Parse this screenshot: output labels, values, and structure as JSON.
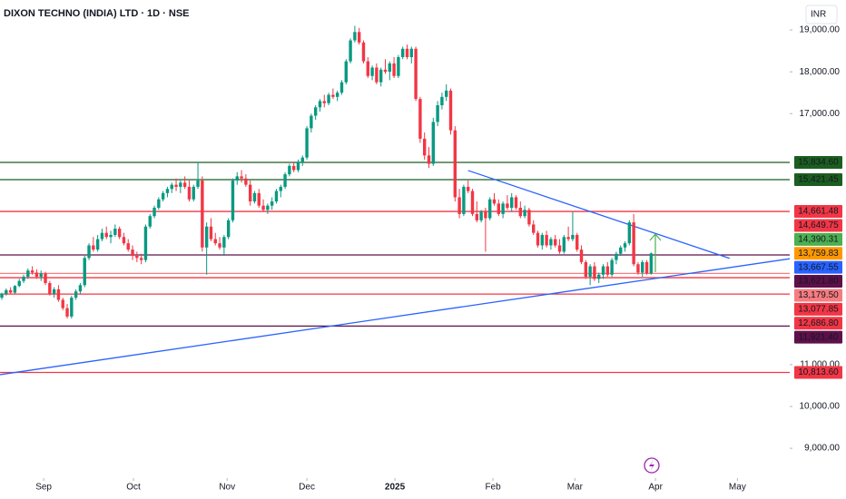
{
  "chart_data": {
    "type": "candlestick",
    "title": "DIXON TECHNO (INDIA) LTD · 1D · NSE",
    "currency": "INR",
    "up_color": "#089981",
    "down_color": "#f23645",
    "xlim": [
      -0.42,
      180.8
    ],
    "ylim": [
      8330,
      19716
    ],
    "xticks": [
      {
        "value": 9.6,
        "label": "Sep"
      },
      {
        "value": 30.2,
        "label": "Oct"
      },
      {
        "value": 51.7,
        "label": "Nov"
      },
      {
        "value": 70,
        "label": "Dec"
      },
      {
        "value": 90.2,
        "label": "2025",
        "bold": true
      },
      {
        "value": 112.7,
        "label": "Feb"
      },
      {
        "value": 131.5,
        "label": "Mar"
      },
      {
        "value": 150,
        "label": "Apr"
      },
      {
        "value": 168.8,
        "label": "May"
      }
    ],
    "yticks": [
      {
        "value": 19000,
        "label": "19,000.00"
      },
      {
        "value": 18000,
        "label": "18,000.00"
      },
      {
        "value": 17000,
        "label": "17,000.00"
      },
      {
        "value": 11000,
        "label": "11,000.00"
      },
      {
        "value": 10000,
        "label": "10,000.00"
      },
      {
        "value": 9000,
        "label": "9,000.00"
      }
    ],
    "x": [
      0,
      1,
      2,
      3,
      4,
      5,
      6,
      7,
      8,
      9,
      10,
      11,
      12,
      13,
      14,
      15,
      16,
      17,
      18,
      19,
      20,
      21,
      22,
      23,
      24,
      25,
      26,
      27,
      28,
      29,
      30,
      31,
      32,
      33,
      34,
      35,
      36,
      37,
      38,
      39,
      40,
      41,
      42,
      43,
      44,
      45,
      46,
      47,
      48,
      49,
      50,
      51,
      52,
      53,
      54,
      55,
      56,
      57,
      58,
      59,
      60,
      61,
      62,
      63,
      64,
      65,
      66,
      67,
      68,
      69,
      70,
      71,
      72,
      73,
      74,
      75,
      76,
      77,
      78,
      79,
      80,
      81,
      82,
      83,
      84,
      85,
      86,
      87,
      88,
      89,
      90,
      91,
      92,
      93,
      94,
      95,
      96,
      97,
      98,
      99,
      100,
      101,
      102,
      103,
      104,
      105,
      106,
      107,
      108,
      109,
      110,
      111,
      112,
      113,
      114,
      115,
      116,
      117,
      118,
      119,
      120,
      121,
      122,
      123,
      124,
      125,
      126,
      127,
      128,
      129,
      130,
      131,
      132,
      133,
      134,
      135,
      136,
      137,
      138,
      139,
      140,
      141,
      142,
      143,
      144,
      145,
      146,
      147,
      148,
      149
    ],
    "ohlc": [
      [
        12600,
        12720,
        12550,
        12700
      ],
      [
        12700,
        12820,
        12650,
        12780
      ],
      [
        12780,
        12850,
        12680,
        12720
      ],
      [
        12720,
        12900,
        12700,
        12880
      ],
      [
        12880,
        13050,
        12850,
        13000
      ],
      [
        13000,
        13150,
        12950,
        13100
      ],
      [
        13100,
        13300,
        13050,
        13250
      ],
      [
        13250,
        13350,
        13150,
        13200
      ],
      [
        13200,
        13280,
        13050,
        13100
      ],
      [
        13100,
        13250,
        13000,
        13180
      ],
      [
        13180,
        13220,
        12900,
        12950
      ],
      [
        12950,
        13000,
        12650,
        12700
      ],
      [
        12700,
        12850,
        12600,
        12800
      ],
      [
        12800,
        12900,
        12500,
        12550
      ],
      [
        12550,
        12600,
        12300,
        12350
      ],
      [
        12350,
        12450,
        12100,
        12150
      ],
      [
        12150,
        12650,
        12100,
        12600
      ],
      [
        12600,
        12800,
        12550,
        12750
      ],
      [
        12750,
        12950,
        12700,
        12900
      ],
      [
        12900,
        13600,
        12850,
        13550
      ],
      [
        13550,
        13900,
        13500,
        13850
      ],
      [
        13850,
        14050,
        13700,
        13750
      ],
      [
        13750,
        14100,
        13700,
        14000
      ],
      [
        14000,
        14250,
        13950,
        14150
      ],
      [
        14150,
        14300,
        14000,
        14050
      ],
      [
        14050,
        14200,
        13900,
        14100
      ],
      [
        14100,
        14350,
        14050,
        14250
      ],
      [
        14250,
        14300,
        14000,
        14050
      ],
      [
        14050,
        14150,
        13850,
        13900
      ],
      [
        13900,
        14000,
        13700,
        13750
      ],
      [
        13750,
        13850,
        13500,
        13600
      ],
      [
        13600,
        13700,
        13450,
        13550
      ],
      [
        13550,
        13650,
        13400,
        13500
      ],
      [
        13500,
        14350,
        13450,
        14300
      ],
      [
        14300,
        14600,
        14250,
        14550
      ],
      [
        14550,
        14800,
        14500,
        14750
      ],
      [
        14750,
        15000,
        14700,
        14950
      ],
      [
        14950,
        15150,
        14900,
        15100
      ],
      [
        15100,
        15250,
        15000,
        15200
      ],
      [
        15200,
        15350,
        15100,
        15300
      ],
      [
        15300,
        15450,
        15150,
        15250
      ],
      [
        15250,
        15400,
        15100,
        15350
      ],
      [
        15350,
        15500,
        15200,
        15250
      ],
      [
        15250,
        15400,
        14900,
        14950
      ],
      [
        14950,
        15300,
        14900,
        15250
      ],
      [
        15250,
        15830,
        15200,
        15400
      ],
      [
        15400,
        15500,
        13700,
        13800
      ],
      [
        13800,
        14400,
        13150,
        14300
      ],
      [
        14300,
        14500,
        13950,
        14000
      ],
      [
        14000,
        14150,
        13850,
        13900
      ],
      [
        13900,
        14050,
        13750,
        13800
      ],
      [
        13800,
        14100,
        13600,
        14050
      ],
      [
        14050,
        14500,
        14000,
        14450
      ],
      [
        14450,
        15450,
        14400,
        15400
      ],
      [
        15400,
        15600,
        15300,
        15500
      ],
      [
        15500,
        15650,
        15350,
        15450
      ],
      [
        15450,
        15550,
        15250,
        15300
      ],
      [
        15300,
        15400,
        14800,
        14900
      ],
      [
        14900,
        15150,
        14850,
        15100
      ],
      [
        15100,
        15200,
        14750,
        14800
      ],
      [
        14800,
        14950,
        14650,
        14700
      ],
      [
        14700,
        14850,
        14600,
        14800
      ],
      [
        14800,
        15000,
        14700,
        14900
      ],
      [
        14900,
        15200,
        14850,
        15150
      ],
      [
        15150,
        15300,
        15000,
        15250
      ],
      [
        15250,
        15600,
        15200,
        15550
      ],
      [
        15550,
        15800,
        15500,
        15750
      ],
      [
        15750,
        15850,
        15600,
        15650
      ],
      [
        15650,
        15900,
        15600,
        15850
      ],
      [
        15850,
        16000,
        15750,
        15950
      ],
      [
        15950,
        16700,
        15900,
        16650
      ],
      [
        16650,
        17000,
        16550,
        16950
      ],
      [
        16950,
        17200,
        16850,
        17150
      ],
      [
        17150,
        17350,
        17050,
        17300
      ],
      [
        17300,
        17450,
        17150,
        17250
      ],
      [
        17250,
        17500,
        17200,
        17450
      ],
      [
        17450,
        17600,
        17350,
        17400
      ],
      [
        17400,
        17550,
        17300,
        17500
      ],
      [
        17500,
        17800,
        17450,
        17750
      ],
      [
        17750,
        18300,
        17700,
        18250
      ],
      [
        18250,
        18800,
        18200,
        18750
      ],
      [
        18750,
        19100,
        18700,
        18950
      ],
      [
        18950,
        19050,
        18650,
        18700
      ],
      [
        18700,
        18750,
        18200,
        18250
      ],
      [
        18250,
        18350,
        17850,
        17900
      ],
      [
        17900,
        18150,
        17800,
        18100
      ],
      [
        18100,
        18200,
        17700,
        17750
      ],
      [
        17750,
        18100,
        17650,
        18050
      ],
      [
        18050,
        18300,
        17950,
        18000
      ],
      [
        18000,
        18250,
        17800,
        18200
      ],
      [
        18200,
        18350,
        17850,
        17900
      ],
      [
        17900,
        18400,
        17850,
        18350
      ],
      [
        18350,
        18600,
        18300,
        18550
      ],
      [
        18550,
        18650,
        18300,
        18350
      ],
      [
        18350,
        18600,
        18200,
        18550
      ],
      [
        18550,
        18600,
        17300,
        17350
      ],
      [
        17350,
        17400,
        16300,
        16400
      ],
      [
        16400,
        16550,
        15900,
        16000
      ],
      [
        16000,
        16200,
        15700,
        15800
      ],
      [
        15800,
        16900,
        15750,
        16800
      ],
      [
        16800,
        17300,
        16700,
        17200
      ],
      [
        17200,
        17500,
        17100,
        17400
      ],
      [
        17400,
        17700,
        17300,
        17550
      ],
      [
        17550,
        17600,
        16500,
        16600
      ],
      [
        16600,
        16700,
        14900,
        15000
      ],
      [
        15000,
        15200,
        14500,
        14600
      ],
      [
        14600,
        15300,
        14550,
        15250
      ],
      [
        15250,
        15400,
        15100,
        15150
      ],
      [
        15150,
        15200,
        14550,
        14600
      ],
      [
        14600,
        14900,
        14400,
        14450
      ],
      [
        14450,
        14700,
        14400,
        14650
      ],
      [
        14650,
        14750,
        13700,
        14500
      ],
      [
        14500,
        15000,
        14450,
        14950
      ],
      [
        14950,
        15100,
        14800,
        14850
      ],
      [
        14850,
        14950,
        14550,
        14600
      ],
      [
        14600,
        14900,
        14500,
        14850
      ],
      [
        14850,
        15050,
        14700,
        14750
      ],
      [
        14750,
        15100,
        14650,
        15000
      ],
      [
        15000,
        15050,
        14700,
        14750
      ],
      [
        14750,
        14900,
        14500,
        14550
      ],
      [
        14550,
        14800,
        14500,
        14700
      ],
      [
        14700,
        14750,
        14300,
        14350
      ],
      [
        14350,
        14450,
        14100,
        14150
      ],
      [
        14150,
        14200,
        13800,
        13850
      ],
      [
        13850,
        14150,
        13750,
        14100
      ],
      [
        14100,
        14200,
        13800,
        13850
      ],
      [
        13850,
        14050,
        13750,
        14000
      ],
      [
        14000,
        14100,
        13800,
        13850
      ],
      [
        13850,
        14000,
        13650,
        13700
      ],
      [
        13700,
        14100,
        13650,
        14050
      ],
      [
        14050,
        14300,
        13950,
        14000
      ],
      [
        14000,
        14650,
        13950,
        14100
      ],
      [
        14100,
        14150,
        13700,
        13750
      ],
      [
        13750,
        13850,
        13400,
        13450
      ],
      [
        13450,
        13500,
        13050,
        13100
      ],
      [
        13100,
        13400,
        12900,
        13350
      ],
      [
        13350,
        13450,
        13000,
        13050
      ],
      [
        13050,
        13200,
        12950,
        13150
      ],
      [
        13150,
        13400,
        13050,
        13350
      ],
      [
        13350,
        13450,
        13100,
        13150
      ],
      [
        13150,
        13550,
        13100,
        13500
      ],
      [
        13500,
        13700,
        13400,
        13650
      ],
      [
        13650,
        13850,
        13600,
        13800
      ],
      [
        13800,
        13950,
        13700,
        13900
      ],
      [
        13900,
        14450,
        13850,
        14400
      ],
      [
        14400,
        14600,
        13350,
        13400
      ],
      [
        13400,
        13450,
        13150,
        13200
      ],
      [
        13200,
        13500,
        13100,
        13450
      ],
      [
        13450,
        13500,
        13150,
        13180
      ],
      [
        13180,
        13680,
        13150,
        13660
      ]
    ],
    "levels": [
      {
        "value": 15834.6,
        "label": "15,834.60",
        "color": "#1b5e20",
        "line": true
      },
      {
        "value": 15421.45,
        "label": "15,421.45",
        "color": "#1b5e20",
        "line": true
      },
      {
        "value": 14661.48,
        "label": "14,661.48",
        "color": "#f23645",
        "line": true
      },
      {
        "value": 14649.75,
        "label": "14,649.75",
        "color": "#f23645",
        "line": false
      },
      {
        "value": 14390.31,
        "label": "14,390.31",
        "color": "#4caf50",
        "line": false
      },
      {
        "value": 13759.83,
        "label": "13,759.83",
        "color": "#ff9800",
        "line": false
      },
      {
        "value": 13667.55,
        "label": "13,667.55",
        "color": "#2962ff",
        "line": false
      },
      {
        "value": 13621.8,
        "label": "13,621.80",
        "color": "#5d1049",
        "line": true
      },
      {
        "value": 13179.5,
        "label": "13,179.50",
        "color": "#f77c80",
        "line": true
      },
      {
        "value": 13077.85,
        "label": "13,077.85",
        "color": "#f23645",
        "line": true
      },
      {
        "value": 12686.8,
        "label": "12,686.80",
        "color": "#f23645",
        "line": true
      },
      {
        "value": 11921.4,
        "label": "11,921.40",
        "color": "#5d1049",
        "line": true
      },
      {
        "value": 10813.6,
        "label": "10,813.60",
        "color": "#f23645",
        "line": true
      }
    ],
    "trendlines": [
      {
        "color": "#2962ff",
        "x": [
          107,
          167
        ],
        "y": [
          15640,
          13540
        ]
      },
      {
        "color": "#2962ff",
        "x": [
          -0.4,
          184
        ],
        "y": [
          10760,
          13580
        ]
      }
    ]
  }
}
